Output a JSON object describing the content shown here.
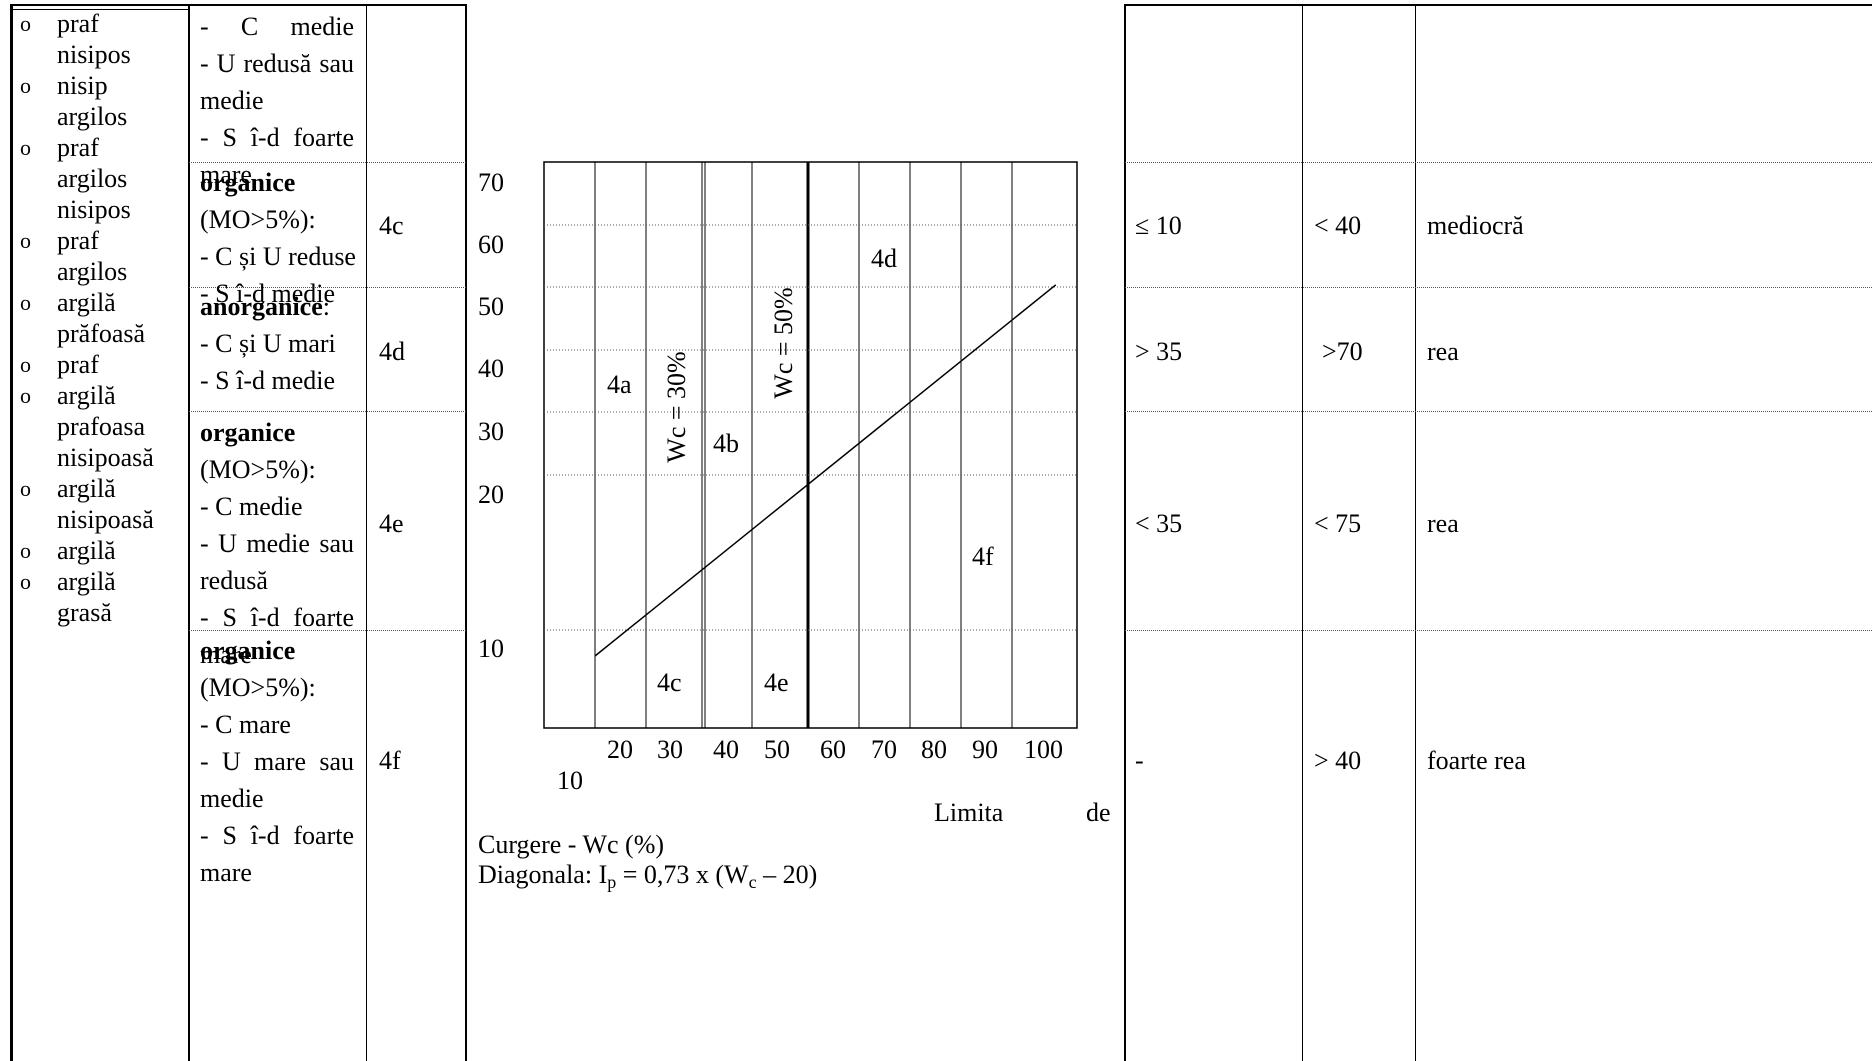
{
  "col1_bullets": [
    {
      "lines": [
        "praf",
        "nisipos"
      ]
    },
    {
      "lines": [
        "nisip",
        "argilos"
      ]
    },
    {
      "lines": [
        "praf",
        "argilos",
        "nisipos"
      ]
    },
    {
      "lines": [
        "praf",
        "argilos"
      ]
    },
    {
      "lines": [
        "argilă",
        "prăfoasă"
      ]
    },
    {
      "lines": [
        "praf"
      ]
    },
    {
      "lines": [
        "argilă",
        "prafoasa",
        "nisipoasă"
      ]
    },
    {
      "lines": [
        "argilă",
        "nisipoasă"
      ]
    },
    {
      "lines": [
        "argilă"
      ]
    },
    {
      "lines": [
        "argilă",
        "grasă"
      ]
    }
  ],
  "bullet_glyph": "o",
  "rows": [
    {
      "code": "",
      "desc": [
        "- C medie",
        "- U redusă sau",
        "medie",
        "- S î-d foarte",
        "mare"
      ],
      "right": [
        "",
        "",
        ""
      ]
    },
    {
      "code": "4c",
      "title": "organice",
      "desc": [
        "(MO>5%):",
        "- C și U reduse",
        "- S î-d medie"
      ],
      "right": [
        "≤ 10",
        "< 40",
        "mediocră"
      ]
    },
    {
      "code": "4d",
      "title": "anorganice",
      "title_suffix": ":",
      "desc": [
        "- C și U mari",
        "- S î-d medie"
      ],
      "right": [
        "> 35",
        ">70",
        "rea"
      ]
    },
    {
      "code": "4e",
      "title": "organice",
      "desc": [
        "(MO>5%):",
        "- C medie",
        "- U medie sau",
        "redusă",
        "- S î-d foarte",
        "mare"
      ],
      "right": [
        "< 35",
        "< 75",
        "rea"
      ]
    },
    {
      "code": "4f",
      "title": "organice",
      "desc": [
        "(MO>5%):",
        "- C mare",
        "- U mare sau",
        "medie",
        "- S î-d foarte",
        "mare"
      ],
      "right": [
        "-",
        "> 40",
        "foarte rea"
      ]
    }
  ],
  "chart_data": {
    "type": "line",
    "y_ticks": [
      "70",
      "60",
      "50",
      "40",
      "30",
      "20",
      "10"
    ],
    "x_ticks": [
      "20",
      "30",
      "40",
      "50",
      "60",
      "70",
      "80",
      "90",
      "100"
    ],
    "x_extra_tick": "10",
    "zone_labels": [
      "4a",
      "4b",
      "4c",
      "4d",
      "4e",
      "4f"
    ],
    "wc30_label": "Wc = 30%",
    "wc50_label": "Wc = 50%",
    "xlabel_part1": "Limita",
    "xlabel_part2": "de",
    "xlabel_part3": "Curgere - Wc (%)",
    "diagonal_label": {
      "prefix": "Diagonala: I",
      "sub1": "p",
      "mid": " = 0,73 x (W",
      "sub2": "c",
      "suffix": " – 20)"
    },
    "series": [
      {
        "x": [
          20,
          110
        ],
        "y": [
          7,
          65
        ]
      }
    ]
  }
}
